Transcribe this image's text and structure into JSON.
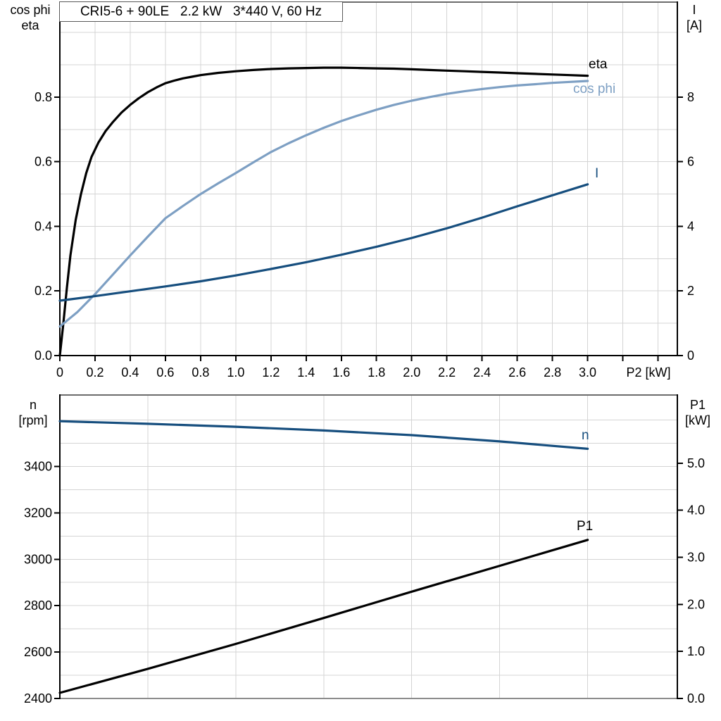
{
  "title": "CRI5-6 + 90LE   2.2 kW   3*440 V, 60 Hz",
  "axis_labels": {
    "top_left": [
      "cos phi",
      "eta"
    ],
    "top_right": [
      "I",
      "[A]"
    ],
    "bottom_left": [
      "n",
      "[rpm]"
    ],
    "bottom_right": [
      "P1",
      "[kW]"
    ]
  },
  "colors": {
    "background": "#ffffff",
    "grid": "#d4d4d4",
    "frame": "#6b6b6b",
    "frame_light": "#8c8c8c",
    "axis": "#000000",
    "dark_blue": "#164e7e",
    "light_blue": "#7d9fc3",
    "black": "#000000"
  },
  "chart_data": [
    {
      "type": "line",
      "title": "CRI5-6 + 90LE   2.2 kW   3*440 V, 60 Hz",
      "xlabel": "P2 [kW]",
      "ylabel": "cos phi / eta",
      "y2label": "I [A]",
      "xlim": [
        0,
        3.51
      ],
      "ylim": [
        0,
        1.094
      ],
      "y2lim": [
        0,
        10.94
      ],
      "grid": true,
      "x_ticks": [
        {
          "v": 0.0,
          "label": "0"
        },
        {
          "v": 0.2,
          "label": "0.2"
        },
        {
          "v": 0.4,
          "label": "0.4"
        },
        {
          "v": 0.6,
          "label": "0.6"
        },
        {
          "v": 0.8,
          "label": "0.8"
        },
        {
          "v": 1.0,
          "label": "1.0"
        },
        {
          "v": 1.2,
          "label": "1.2"
        },
        {
          "v": 1.4,
          "label": "1.4"
        },
        {
          "v": 1.6,
          "label": "1.6"
        },
        {
          "v": 1.8,
          "label": "1.8"
        },
        {
          "v": 2.0,
          "label": "2.0"
        },
        {
          "v": 2.2,
          "label": "2.2"
        },
        {
          "v": 2.4,
          "label": "2.4"
        },
        {
          "v": 2.6,
          "label": "2.6"
        },
        {
          "v": 2.8,
          "label": "2.8"
        },
        {
          "v": 3.0,
          "label": "3.0"
        },
        {
          "v": 3.2,
          "label": ""
        },
        {
          "v": 3.4,
          "label": ""
        }
      ],
      "y_ticks": [
        {
          "v": 0.0,
          "label": "0.0"
        },
        {
          "v": 0.2,
          "label": "0.2"
        },
        {
          "v": 0.4,
          "label": "0.4"
        },
        {
          "v": 0.6,
          "label": "0.6"
        },
        {
          "v": 0.8,
          "label": "0.8"
        }
      ],
      "y2_ticks": [
        {
          "v": 0,
          "label": "0"
        },
        {
          "v": 2,
          "label": "2"
        },
        {
          "v": 4,
          "label": "4"
        },
        {
          "v": 6,
          "label": "6"
        },
        {
          "v": 8,
          "label": "8"
        }
      ],
      "x_grid": [
        0.2,
        0.4,
        0.6,
        0.8,
        1.0,
        1.2,
        1.4,
        1.6,
        1.8,
        2.0,
        2.2,
        2.4,
        2.6,
        2.8,
        3.0,
        3.2,
        3.4
      ],
      "y_grid": [
        0.1,
        0.2,
        0.3,
        0.4,
        0.5,
        0.6,
        0.7,
        0.8,
        0.9,
        1.0
      ],
      "series": [
        {
          "name": "eta",
          "color": "#000000",
          "axis": "left",
          "points": [
            [
              0,
              0
            ],
            [
              0.02,
              0.1
            ],
            [
              0.04,
              0.21
            ],
            [
              0.06,
              0.31
            ],
            [
              0.09,
              0.42
            ],
            [
              0.12,
              0.5
            ],
            [
              0.15,
              0.565
            ],
            [
              0.18,
              0.615
            ],
            [
              0.22,
              0.66
            ],
            [
              0.26,
              0.695
            ],
            [
              0.3,
              0.722
            ],
            [
              0.35,
              0.752
            ],
            [
              0.4,
              0.776
            ],
            [
              0.45,
              0.797
            ],
            [
              0.5,
              0.815
            ],
            [
              0.55,
              0.83
            ],
            [
              0.6,
              0.843
            ],
            [
              0.65,
              0.851
            ],
            [
              0.7,
              0.858
            ],
            [
              0.75,
              0.863
            ],
            [
              0.8,
              0.868
            ],
            [
              0.9,
              0.875
            ],
            [
              1.0,
              0.88
            ],
            [
              1.1,
              0.884
            ],
            [
              1.2,
              0.887
            ],
            [
              1.3,
              0.889
            ],
            [
              1.4,
              0.89
            ],
            [
              1.5,
              0.891
            ],
            [
              1.6,
              0.891
            ],
            [
              1.7,
              0.89
            ],
            [
              1.8,
              0.889
            ],
            [
              1.9,
              0.888
            ],
            [
              2.0,
              0.886
            ],
            [
              2.1,
              0.884
            ],
            [
              2.2,
              0.882
            ],
            [
              2.3,
              0.88
            ],
            [
              2.4,
              0.878
            ],
            [
              2.5,
              0.876
            ],
            [
              2.6,
              0.874
            ],
            [
              2.7,
              0.872
            ],
            [
              2.8,
              0.87
            ],
            [
              2.9,
              0.868
            ],
            [
              3.0,
              0.866
            ]
          ]
        },
        {
          "name": "cos phi",
          "color": "#7d9fc3",
          "axis": "left",
          "points": [
            [
              0,
              0.09
            ],
            [
              0.1,
              0.135
            ],
            [
              0.2,
              0.19
            ],
            [
              0.3,
              0.25
            ],
            [
              0.4,
              0.31
            ],
            [
              0.5,
              0.368
            ],
            [
              0.6,
              0.425
            ],
            [
              0.7,
              0.463
            ],
            [
              0.8,
              0.5
            ],
            [
              0.9,
              0.533
            ],
            [
              1.0,
              0.565
            ],
            [
              1.1,
              0.598
            ],
            [
              1.2,
              0.63
            ],
            [
              1.3,
              0.657
            ],
            [
              1.4,
              0.682
            ],
            [
              1.5,
              0.705
            ],
            [
              1.6,
              0.726
            ],
            [
              1.7,
              0.744
            ],
            [
              1.8,
              0.761
            ],
            [
              1.9,
              0.776
            ],
            [
              2.0,
              0.789
            ],
            [
              2.1,
              0.8
            ],
            [
              2.2,
              0.81
            ],
            [
              2.3,
              0.818
            ],
            [
              2.4,
              0.825
            ],
            [
              2.5,
              0.831
            ],
            [
              2.6,
              0.836
            ],
            [
              2.7,
              0.84
            ],
            [
              2.8,
              0.844
            ],
            [
              2.9,
              0.847
            ],
            [
              3.0,
              0.85
            ]
          ]
        },
        {
          "name": "I",
          "color": "#164e7e",
          "axis": "right",
          "points": [
            [
              0,
              1.7
            ],
            [
              0.2,
              1.84
            ],
            [
              0.4,
              1.99
            ],
            [
              0.6,
              2.14
            ],
            [
              0.8,
              2.3
            ],
            [
              1.0,
              2.48
            ],
            [
              1.2,
              2.68
            ],
            [
              1.4,
              2.89
            ],
            [
              1.6,
              3.12
            ],
            [
              1.8,
              3.37
            ],
            [
              2.0,
              3.64
            ],
            [
              2.2,
              3.94
            ],
            [
              2.4,
              4.27
            ],
            [
              2.6,
              4.62
            ],
            [
              2.8,
              4.96
            ],
            [
              3.0,
              5.3
            ]
          ]
        }
      ]
    },
    {
      "type": "line",
      "title": "",
      "xlabel": "",
      "ylabel": "n [rpm]",
      "y2label": "P1 [kW]",
      "xlim": [
        0,
        3.51
      ],
      "ylim": [
        2400,
        3708
      ],
      "y2lim": [
        0,
        6.45
      ],
      "grid": true,
      "x_ticks": [],
      "y_ticks": [
        {
          "v": 2400,
          "label": "2400"
        },
        {
          "v": 2600,
          "label": "2600"
        },
        {
          "v": 2800,
          "label": "2800"
        },
        {
          "v": 3000,
          "label": "3000"
        },
        {
          "v": 3200,
          "label": "3200"
        },
        {
          "v": 3400,
          "label": "3400"
        }
      ],
      "y2_ticks": [
        {
          "v": 0,
          "label": "0.0"
        },
        {
          "v": 1,
          "label": "1.0"
        },
        {
          "v": 2,
          "label": "2.0"
        },
        {
          "v": 3,
          "label": "3.0"
        },
        {
          "v": 4,
          "label": "4.0"
        },
        {
          "v": 5,
          "label": "5.0"
        }
      ],
      "x_grid": [
        0.5,
        1.0,
        1.5,
        2.0,
        2.5,
        3.0
      ],
      "y_grid": [
        2500,
        2600,
        2700,
        2800,
        2900,
        3000,
        3100,
        3200,
        3300,
        3400,
        3500,
        3600
      ],
      "series": [
        {
          "name": "n",
          "color": "#164e7e",
          "axis": "left",
          "points": [
            [
              0,
              3595
            ],
            [
              0.5,
              3584
            ],
            [
              1.0,
              3571
            ],
            [
              1.5,
              3555
            ],
            [
              2.0,
              3535
            ],
            [
              2.5,
              3508
            ],
            [
              3.0,
              3476
            ]
          ]
        },
        {
          "name": "P1",
          "color": "#000000",
          "axis": "right",
          "points": [
            [
              0,
              0.12
            ],
            [
              0.5,
              0.63
            ],
            [
              1.0,
              1.16
            ],
            [
              1.5,
              1.71
            ],
            [
              2.0,
              2.27
            ],
            [
              2.5,
              2.82
            ],
            [
              3.0,
              3.37
            ]
          ]
        }
      ]
    }
  ]
}
